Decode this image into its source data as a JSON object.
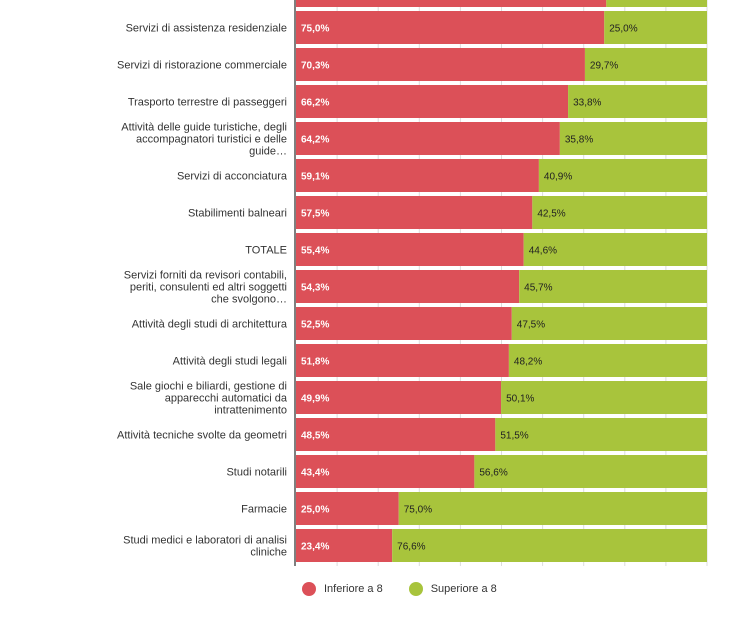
{
  "chart_data": {
    "type": "bar",
    "orientation": "horizontal",
    "stacked": true,
    "percent": true,
    "xlim": [
      0,
      100
    ],
    "grid": true,
    "legend_position": "bottom",
    "categories": [
      "",
      "Servizi di assistenza residenziale",
      "Servizi di ristorazione commerciale",
      "Trasporto terrestre di passeggeri",
      "Attività delle guide turistiche, degli accompagnatori turistici e delle guide…",
      "Servizi di acconciatura",
      "Stabilimenti balneari",
      "TOTALE",
      "Servizi forniti da revisori contabili, periti, consulenti ed altri soggetti che svolgono…",
      "Attività degli studi di architettura",
      "Attività degli studi legali",
      "Sale giochi e biliardi, gestione di apparecchi automatici da intrattenimento",
      "Attività tecniche svolte da geometri",
      "Studi notarili",
      "Farmacie",
      "Studi medici e laboratori di analisi cliniche"
    ],
    "series": [
      {
        "name": "Inferiore a 8",
        "color": "#dc5058",
        "values": [
          75.5,
          75.0,
          70.3,
          66.2,
          64.2,
          59.1,
          57.5,
          55.4,
          54.3,
          52.5,
          51.8,
          49.9,
          48.5,
          43.4,
          25.0,
          23.4
        ],
        "labels": [
          "",
          "75,0%",
          "70,3%",
          "66,2%",
          "64,2%",
          "59,1%",
          "57,5%",
          "55,4%",
          "54,3%",
          "52,5%",
          "51,8%",
          "49,9%",
          "48,5%",
          "43,4%",
          "25,0%",
          "23,4%"
        ]
      },
      {
        "name": "Superiore a 8",
        "color": "#a8c43c",
        "values": [
          24.5,
          25.0,
          29.7,
          33.8,
          35.8,
          40.9,
          42.5,
          44.6,
          45.7,
          47.5,
          48.2,
          50.1,
          51.5,
          56.6,
          75.0,
          76.6
        ],
        "labels": [
          "",
          "25,0%",
          "29,7%",
          "33,8%",
          "35,8%",
          "40,9%",
          "42,5%",
          "44,6%",
          "45,7%",
          "47,5%",
          "48,2%",
          "50,1%",
          "51,5%",
          "56,6%",
          "75,0%",
          "76,6%"
        ]
      }
    ]
  },
  "legend": {
    "items": [
      {
        "label": "Inferiore a 8",
        "color": "#dc5058"
      },
      {
        "label": "Superiore a 8",
        "color": "#a8c43c"
      }
    ]
  }
}
